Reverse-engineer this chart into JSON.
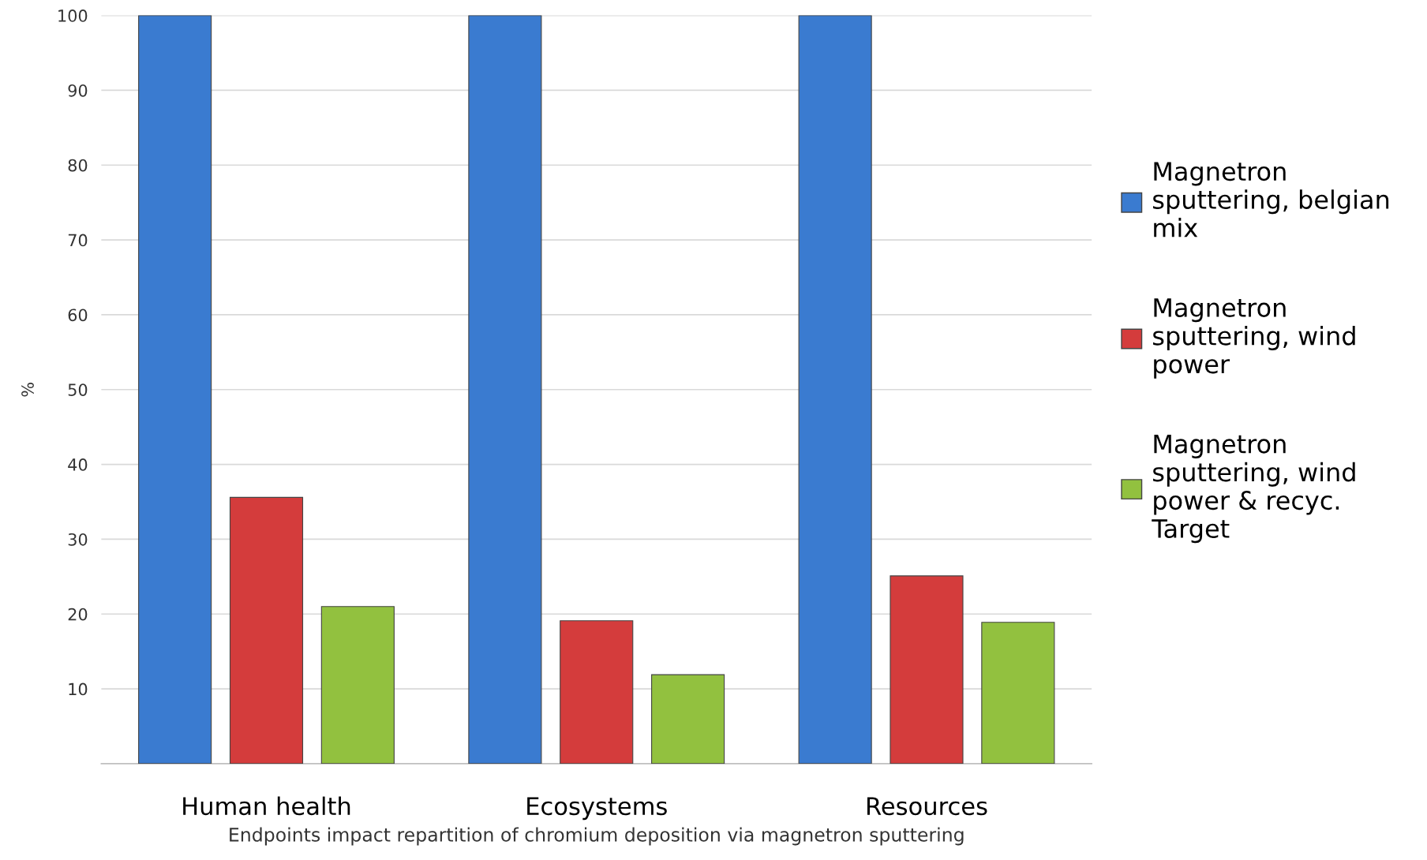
{
  "chart_data": {
    "type": "bar",
    "xlabel": "Endpoints impact repartition of chromium deposition via magnetron sputtering",
    "ylabel": "%",
    "categories": [
      "Human health",
      "Ecosystems",
      "Resources"
    ],
    "series": [
      {
        "name": "Magnetron sputtering, belgian mix",
        "color": "#3a7bd0",
        "values": [
          100,
          100,
          100
        ]
      },
      {
        "name": "Magnetron sputtering, wind power",
        "color": "#d43c3c",
        "values": [
          35.6,
          19.1,
          25.1
        ]
      },
      {
        "name": "Magnetron sputtering, wind power & recyc. Target",
        "color": "#92c13f",
        "values": [
          21.0,
          11.9,
          18.9
        ]
      }
    ],
    "ylim": [
      0,
      100
    ],
    "yticks": [
      {
        "value": 0,
        "label": null
      },
      10,
      20,
      30,
      40,
      50,
      60,
      70,
      80,
      90,
      100
    ],
    "grid": "y",
    "legend": "right"
  }
}
